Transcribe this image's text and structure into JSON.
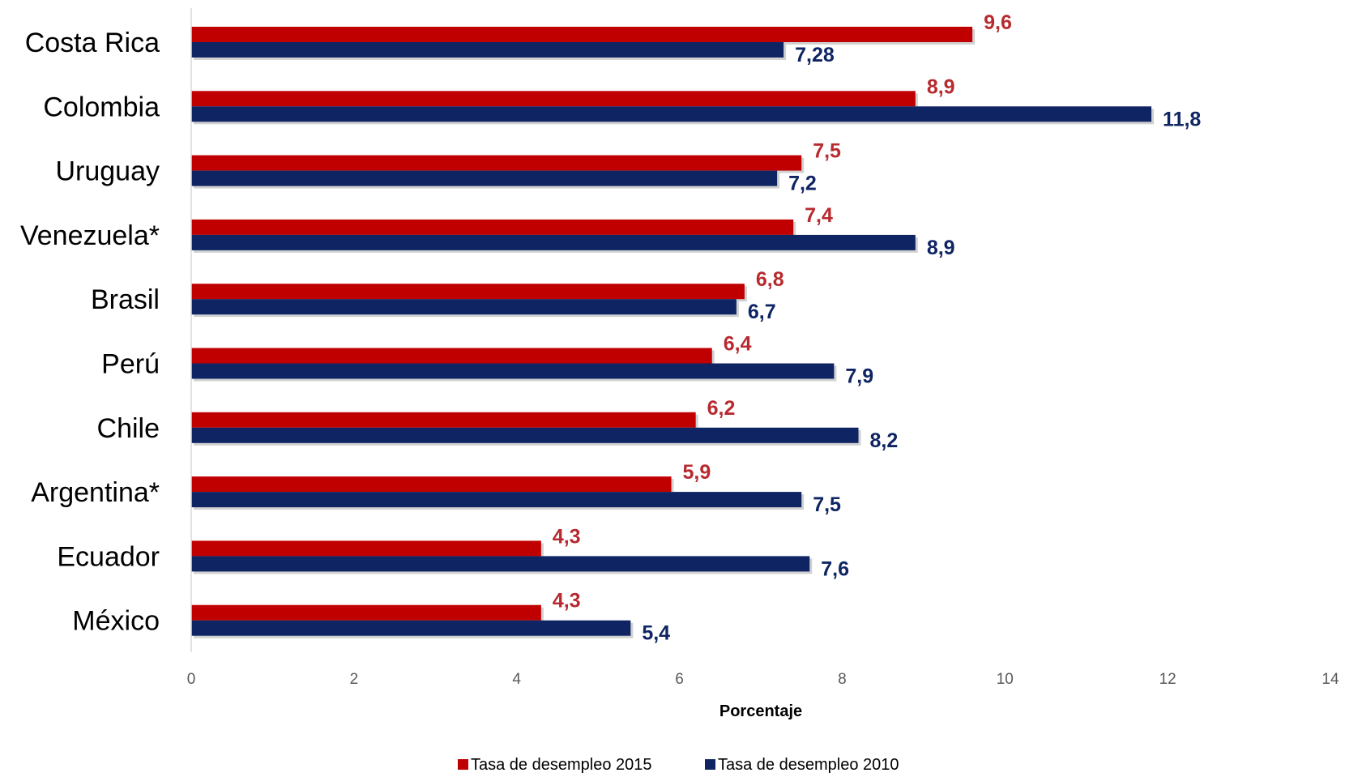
{
  "chart_data": {
    "type": "bar",
    "orientation": "horizontal",
    "categories": [
      "Costa Rica",
      "Colombia",
      "Uruguay",
      "Venezuela*",
      "Brasil",
      "Perú",
      "Chile",
      "Argentina*",
      "Ecuador",
      "México"
    ],
    "series": [
      {
        "name": "Tasa de desempleo 2015",
        "color": "#C00000",
        "label_color": "#B72A2F",
        "values": [
          9.6,
          8.9,
          7.5,
          7.4,
          6.8,
          6.4,
          6.2,
          5.9,
          4.3,
          4.3
        ],
        "labels": [
          "9,6",
          "8,9",
          "7,5",
          "7,4",
          "6,8",
          "6,4",
          "6,2",
          "5,9",
          "4,3",
          "4,3"
        ]
      },
      {
        "name": "Tasa de desempleo 2010",
        "color": "#0F2563",
        "label_color": "#0F2563",
        "values": [
          7.28,
          11.8,
          7.2,
          8.9,
          6.7,
          7.9,
          8.2,
          7.5,
          7.6,
          5.4
        ],
        "labels": [
          "7,28",
          "11,8",
          "7,2",
          "8,9",
          "6,7",
          "7,9",
          "8,2",
          "7,5",
          "7,6",
          "5,4"
        ]
      }
    ],
    "xlim": [
      0,
      14
    ],
    "xticks": [
      "0",
      "2",
      "4",
      "6",
      "8",
      "10",
      "12",
      "14"
    ],
    "xlabel": "Porcentaje",
    "ylabel": "",
    "title": "",
    "legend_position": "bottom",
    "grid": false
  }
}
